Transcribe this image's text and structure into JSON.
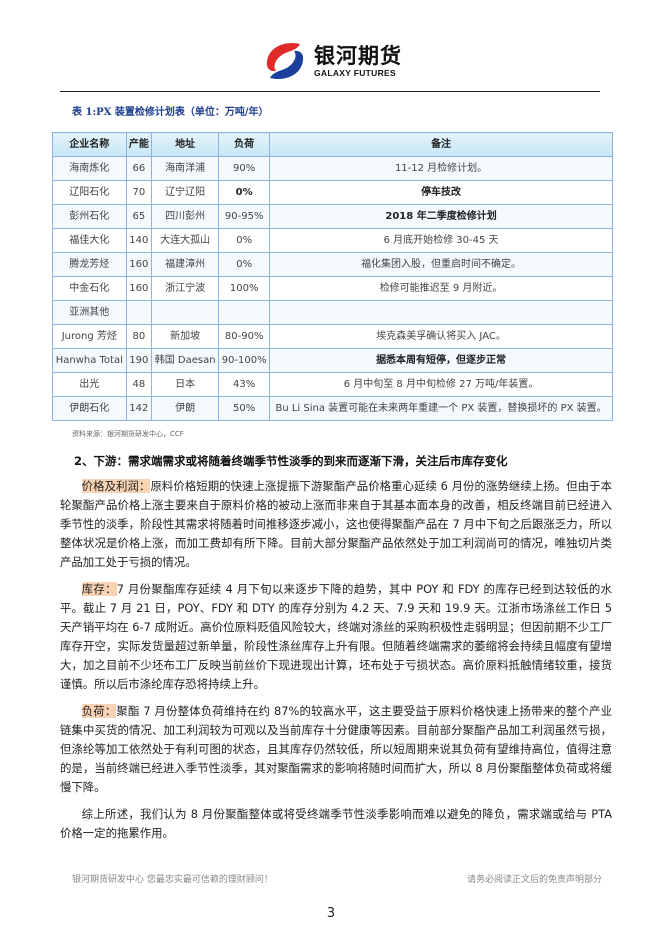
{
  "header": {
    "logo_cn": "银河期货",
    "logo_en": "GALAXY FUTURES",
    "brand_colors": {
      "red": "#e02a2a",
      "blue": "#1c3f9b"
    }
  },
  "table": {
    "caption": "表 1:PX 装置检修计划表（单位：万吨/年）",
    "columns": [
      "企业名称",
      "产能",
      "地址",
      "负荷",
      "备注"
    ],
    "rows": [
      {
        "name": "海南炼化",
        "capacity": "66",
        "location": "海南洋浦",
        "load": "90%",
        "note": "11-12 月检修计划。"
      },
      {
        "name": "辽阳石化",
        "capacity": "70",
        "location": "辽宁辽阳",
        "load": "0%",
        "note": "停车技改"
      },
      {
        "name": "彭州石化",
        "capacity": "65",
        "location": "四川彭州",
        "load": "90-95%",
        "note": "2018 年二季度检修计划"
      },
      {
        "name": "福佳大化",
        "capacity": "140",
        "location": "大连大孤山",
        "load": "0%",
        "note": "6 月底开始检修 30-45 天"
      },
      {
        "name": "腾龙芳烃",
        "capacity": "160",
        "location": "福建漳州",
        "load": "0%",
        "note": "福化集团入股，但重启时间不确定。"
      },
      {
        "name": "中金石化",
        "capacity": "160",
        "location": "浙江宁波",
        "load": "100%",
        "note": "检修可能推迟至 9 月附近。"
      },
      {
        "name": "亚洲其他",
        "capacity": "",
        "location": "",
        "load": "",
        "note": ""
      },
      {
        "name": "Jurong 芳烃",
        "capacity": "80",
        "location": "新加坡",
        "load": "80-90%",
        "note": "埃克森美孚确认将买入 JAC。"
      },
      {
        "name": "Hanwha Total",
        "capacity": "190",
        "location": "韩国 Daesan",
        "load": "90-100%",
        "note": "据悉本周有短停，但逐步正常"
      },
      {
        "name": "出光",
        "capacity": "48",
        "location": "日本",
        "load": "43%",
        "note": "6 月中旬至 8 月中旬检修 27 万吨/年装置。"
      },
      {
        "name": "伊朗石化",
        "capacity": "142",
        "location": "伊朗",
        "load": "50%",
        "note": "Bu Li Sina 装置可能在未来两年重建一个 PX 装置，替换损坏的 PX 装置。"
      }
    ],
    "source": "资料来源：银河期货研发中心，CCF"
  },
  "section": {
    "heading": "2、下游：需求端需求或将随着终端季节性淡季的到来而逐渐下滑，关注后市库存变化",
    "paragraphs": [
      {
        "label": "价格及利润：",
        "text": "原料价格短期的快速上涨提振下游聚酯产品价格重心延续 6 月份的涨势继续上扬。但由于本轮聚酯产品价格上涨主要来自于原料价格的被动上涨而非来自于其基本面本身的改善，相反终端目前已经进入季节性的淡季，阶段性其需求将随着时间推移逐步减小，这也使得聚酯产品在 7 月中下旬之后跟涨乏力，所以整体状况是价格上涨，而加工费却有所下降。目前大部分聚酯产品依然处于加工利润尚可的情况，唯独切片类产品加工处于亏损的情况。"
      },
      {
        "label": "库存：",
        "text": "7 月份聚酯库存延续 4 月下旬以来逐步下降的趋势，其中 POY 和 FDY 的库存已经到达较低的水平。截止 7 月 21 日，POY、FDY 和 DTY 的库存分别为 4.2 天、7.9 天和 19.9 天。江浙市场涤丝工作日 5 天产销平均在 6-7 成附近。高价位原料贬值风险较大，终端对涤丝的采购积极性走弱明显；但因前期不少工厂库存开空，实际发货量超过新单量，阶段性涤丝库存上升有限。但随着终端需求的萎缩将会持续且幅度有望增大，加之目前不少坯布工厂反映当前丝价下现进现出计算，坯布处于亏损状态。高价原料抵触情绪较重，接货谨慎。所以后市涤纶库存恐将持续上升。"
      },
      {
        "label": "负荷：",
        "text": "聚酯 7 月份整体负荷维持在约 87%的较高水平，这主要受益于原料价格快速上扬带来的整个产业链集中买货的情况、加工利润较为可观以及当前库存十分健康等因素。目前部分聚酯产品加工利润虽然亏损，但涤纶等加工依然处于有利可图的状态，且其库存仍然较低，所以短周期来说其负荷有望维持高位，值得注意的是，当前终端已经进入季节性淡季，其对聚酯需求的影响将随时间而扩大，所以 8 月份聚酯整体负荷或将缓慢下降。"
      },
      {
        "label": "",
        "text": "综上所述，我们认为 8 月份聚酯整体或将受终端季节性淡季影响而难以避免的降负，需求端或给与 PTA 价格一定的拖累作用。"
      }
    ],
    "highlight_color": "#f9d4b4"
  },
  "footer": {
    "left": "银河期货研发中心  您最忠实最可信赖的理财顾问！",
    "right": "请务必阅读正文后的免责声明部分",
    "page_number": "3"
  }
}
